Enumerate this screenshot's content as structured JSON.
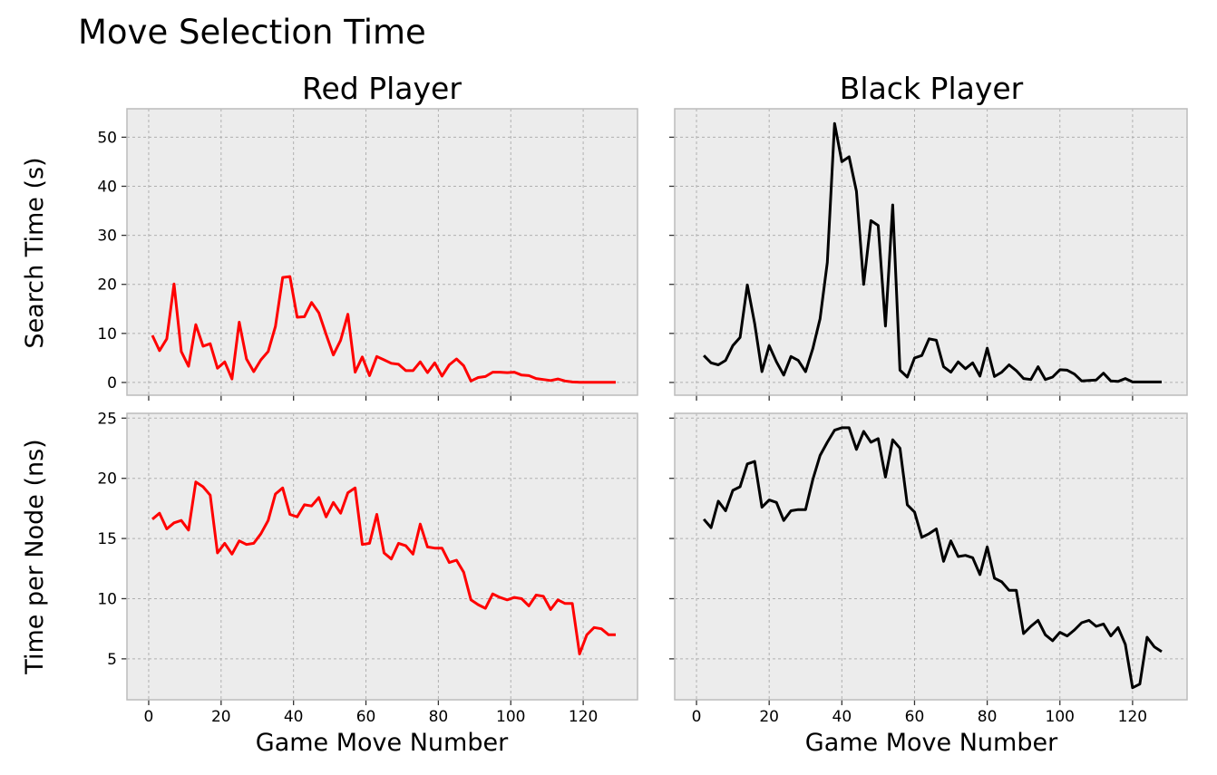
{
  "figure": {
    "title": "Move Selection Time",
    "col_titles": [
      "Red Player",
      "Black Player"
    ],
    "row_ylabels": [
      "Search Time (s)",
      "Time per Node (ns)"
    ],
    "xlabel": "Game Move Number",
    "colors": {
      "red": "#ff0000",
      "black": "#000000",
      "panel_bg": "#ececec",
      "grid": "#b0b0b0",
      "spine": "#bcbcbc"
    }
  },
  "chart_data": [
    {
      "type": "line",
      "title": "Red Player",
      "xlabel": "",
      "ylabel": "Search Time (s)",
      "xlim": [
        -6,
        135
      ],
      "ylim": [
        -2.6,
        55.8
      ],
      "xticks": [
        0,
        20,
        40,
        60,
        80,
        100,
        120
      ],
      "yticks": [
        0,
        10,
        20,
        30,
        40,
        50
      ],
      "grid": true,
      "color": "#ff0000",
      "series": [
        {
          "x": [
            1,
            3,
            5,
            7,
            9,
            11,
            13,
            15,
            17,
            19,
            21,
            23,
            25,
            27,
            29,
            31,
            33,
            35,
            37,
            39,
            41,
            43,
            45,
            47,
            49,
            51,
            53,
            55,
            57,
            59,
            61,
            63,
            65,
            67,
            69,
            71,
            73,
            75,
            77,
            79,
            81,
            83,
            85,
            87,
            89,
            91,
            93,
            95,
            97,
            99,
            101,
            103,
            105,
            107,
            109,
            111,
            113,
            115,
            117,
            119,
            121,
            123,
            125,
            127,
            129
          ],
          "values": [
            9.6,
            6.5,
            8.9,
            20.1,
            6.3,
            3.3,
            11.8,
            7.4,
            7.9,
            2.9,
            4.2,
            0.7,
            12.3,
            4.8,
            2.2,
            4.6,
            6.3,
            11.4,
            21.4,
            21.6,
            13.3,
            13.4,
            16.3,
            14.2,
            9.8,
            5.6,
            8.6,
            13.9,
            2.1,
            5.2,
            1.4,
            5.3,
            4.6,
            3.9,
            3.7,
            2.4,
            2.4,
            4.2,
            2.0,
            4.0,
            1.3,
            3.6,
            4.8,
            3.4,
            0.3,
            1.0,
            1.2,
            2.1,
            2.1,
            2.0,
            2.1,
            1.5,
            1.4,
            0.8,
            0.6,
            0.4,
            0.7,
            0.3,
            0.1,
            0.05,
            0.05,
            0.05,
            0.05,
            0.05,
            0.05
          ]
        }
      ]
    },
    {
      "type": "line",
      "title": "Black Player",
      "xlabel": "",
      "ylabel": "",
      "xlim": [
        -6,
        135
      ],
      "ylim": [
        -2.6,
        55.8
      ],
      "xticks": [
        0,
        20,
        40,
        60,
        80,
        100,
        120
      ],
      "yticks": [
        0,
        10,
        20,
        30,
        40,
        50
      ],
      "grid": true,
      "color": "#000000",
      "series": [
        {
          "x": [
            2,
            4,
            6,
            8,
            10,
            12,
            14,
            16,
            18,
            20,
            22,
            24,
            26,
            28,
            30,
            32,
            34,
            36,
            38,
            40,
            42,
            44,
            46,
            48,
            50,
            52,
            54,
            56,
            58,
            60,
            62,
            64,
            66,
            68,
            70,
            72,
            74,
            76,
            78,
            80,
            82,
            84,
            86,
            88,
            90,
            92,
            94,
            96,
            98,
            100,
            102,
            104,
            106,
            108,
            110,
            112,
            114,
            116,
            118,
            120,
            122,
            124,
            126,
            128
          ],
          "values": [
            5.5,
            4.0,
            3.6,
            4.5,
            7.5,
            9.2,
            19.9,
            12.0,
            2.2,
            7.5,
            4.2,
            1.5,
            5.3,
            4.5,
            2.2,
            6.9,
            13.0,
            24.5,
            52.8,
            45.0,
            46.0,
            39.0,
            20.0,
            33.0,
            32.0,
            11.5,
            36.2,
            2.5,
            1.1,
            5.0,
            5.5,
            8.9,
            8.6,
            3.2,
            2.1,
            4.2,
            2.8,
            4.0,
            1.3,
            7.0,
            1.2,
            2.1,
            3.6,
            2.4,
            0.8,
            0.6,
            3.2,
            0.6,
            1.1,
            2.6,
            2.5,
            1.7,
            0.3,
            0.4,
            0.5,
            1.9,
            0.3,
            0.2,
            0.8,
            0.1,
            0.1,
            0.1,
            0.1,
            0.1
          ]
        }
      ]
    },
    {
      "type": "line",
      "title": "",
      "xlabel": "Game Move Number",
      "ylabel": "Time per Node (ns)",
      "xlim": [
        -6,
        135
      ],
      "ylim": [
        1.6,
        25.4
      ],
      "xticks": [
        0,
        20,
        40,
        60,
        80,
        100,
        120
      ],
      "yticks": [
        5,
        10,
        15,
        20,
        25
      ],
      "grid": true,
      "color": "#ff0000",
      "series": [
        {
          "x": [
            1,
            3,
            5,
            7,
            9,
            11,
            13,
            15,
            17,
            19,
            21,
            23,
            25,
            27,
            29,
            31,
            33,
            35,
            37,
            39,
            41,
            43,
            45,
            47,
            49,
            51,
            53,
            55,
            57,
            59,
            61,
            63,
            65,
            67,
            69,
            71,
            73,
            75,
            77,
            79,
            81,
            83,
            85,
            87,
            89,
            91,
            93,
            95,
            97,
            99,
            101,
            103,
            105,
            107,
            109,
            111,
            113,
            115,
            117,
            119,
            121,
            123,
            125,
            127,
            129
          ],
          "values": [
            16.6,
            17.1,
            15.8,
            16.3,
            16.5,
            15.7,
            19.7,
            19.3,
            18.6,
            13.8,
            14.6,
            13.7,
            14.8,
            14.5,
            14.6,
            15.4,
            16.5,
            18.7,
            19.2,
            17.0,
            16.8,
            17.8,
            17.7,
            18.4,
            16.8,
            18.0,
            17.1,
            18.8,
            19.2,
            14.5,
            14.6,
            17.0,
            13.8,
            13.3,
            14.6,
            14.4,
            13.7,
            16.2,
            14.3,
            14.2,
            14.2,
            13.0,
            13.2,
            12.2,
            9.9,
            9.5,
            9.2,
            10.4,
            10.1,
            9.9,
            10.1,
            10.0,
            9.4,
            10.3,
            10.2,
            9.1,
            9.9,
            9.6,
            9.6,
            5.4,
            7.0,
            7.6,
            7.5,
            7.0,
            7.0
          ]
        }
      ]
    },
    {
      "type": "line",
      "title": "",
      "xlabel": "Game Move Number",
      "ylabel": "",
      "xlim": [
        -6,
        135
      ],
      "ylim": [
        1.6,
        25.4
      ],
      "xticks": [
        0,
        20,
        40,
        60,
        80,
        100,
        120
      ],
      "yticks": [
        5,
        10,
        15,
        20,
        25
      ],
      "grid": true,
      "color": "#000000",
      "series": [
        {
          "x": [
            2,
            4,
            6,
            8,
            10,
            12,
            14,
            16,
            18,
            20,
            22,
            24,
            26,
            28,
            30,
            32,
            34,
            36,
            38,
            40,
            42,
            44,
            46,
            48,
            50,
            52,
            54,
            56,
            58,
            60,
            62,
            64,
            66,
            68,
            70,
            72,
            74,
            76,
            78,
            80,
            82,
            84,
            86,
            88,
            90,
            92,
            94,
            96,
            98,
            100,
            102,
            104,
            106,
            108,
            110,
            112,
            114,
            116,
            118,
            120,
            122,
            124,
            126,
            128
          ],
          "values": [
            16.6,
            15.9,
            18.1,
            17.3,
            19.0,
            19.3,
            21.2,
            21.4,
            17.6,
            18.2,
            18.0,
            16.5,
            17.3,
            17.4,
            17.4,
            19.9,
            21.9,
            23.0,
            24.0,
            24.2,
            24.2,
            22.4,
            23.9,
            23.0,
            23.3,
            20.1,
            23.2,
            22.5,
            17.8,
            17.2,
            15.1,
            15.4,
            15.8,
            13.1,
            14.8,
            13.5,
            13.6,
            13.4,
            12.0,
            14.3,
            11.7,
            11.4,
            10.7,
            10.7,
            7.1,
            7.7,
            8.2,
            7.0,
            6.5,
            7.2,
            6.9,
            7.4,
            8.0,
            8.2,
            7.7,
            7.9,
            6.9,
            7.6,
            6.2,
            2.6,
            2.9,
            6.8,
            6.0,
            5.6
          ]
        }
      ]
    }
  ]
}
